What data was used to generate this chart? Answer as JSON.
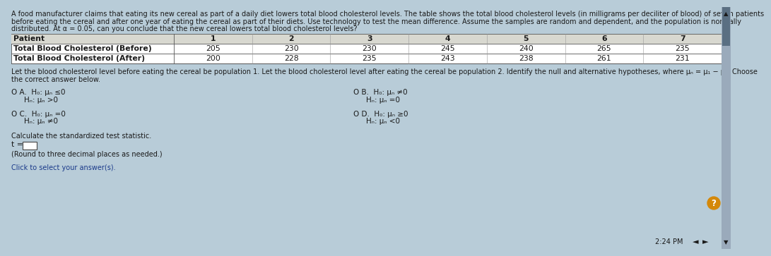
{
  "bg_color": "#b8ccd8",
  "panel_color": "#ccd8e4",
  "title_line1": "A food manufacturer claims that eating its new cereal as part of a daily diet lowers total blood cholesterol levels. The table shows the total blood cholesterol levels (in milligrams per deciliter of blood) of seven patients",
  "title_line2": "before eating the cereal and after one year of eating the cereal as part of their diets. Use technology to test the mean difference. Assume the samples are random and dependent, and the population is normally",
  "title_line3": "distributed. At α = 0.05, can you conclude that the new cereal lowers total blood cholesterol levels?",
  "table_headers": [
    "Patient",
    "1",
    "2",
    "3",
    "4",
    "5",
    "6",
    "7"
  ],
  "row1_label": "Total Blood Cholesterol (Before)",
  "row2_label": "Total Blood Cholesterol (After)",
  "row1_data": [
    "205",
    "230",
    "230",
    "245",
    "240",
    "265",
    "235"
  ],
  "row2_data": [
    "200",
    "228",
    "235",
    "243",
    "238",
    "261",
    "231"
  ],
  "para_line1": "Let the blood cholesterol level before eating the cereal be population 1. Let the blood cholesterol level after eating the cereal be population 2. Identify the null and alternative hypotheses, where μₙ = μ₁ − μ₂. Choose",
  "para_line2": "the correct answer below.",
  "optA_line1": "O A.  H₀: μₙ ≤0",
  "optA_line2": "        H₀: μₙ >0",
  "optB_line1": "O B.  H₀: μₙ ≠0",
  "optB_line2": "        Hₙ: μₙ =0",
  "optC_line1": "O C.  H₀: μₙ =0",
  "optC_line2": "        Hₙ: μₙ ≠0",
  "optD_line1": "O D.  H₀: μₙ ≥0",
  "optD_line2": "        Hₙ: μₙ <0",
  "calc_text": "Calculate the standardized test statistic.",
  "t_label": "t =",
  "round_text": "(Round to three decimal places as needed.)",
  "click_text": "Click to select your answer(s).",
  "time_text": "2:24 PM",
  "text_color": "#1a1a1a",
  "link_color": "#1a3a8a",
  "table_border": "#555555",
  "scrollbar_bg": "#9aaabb",
  "scrollbar_handle": "#5a6f82",
  "question_circle": "#d4880a",
  "white": "#ffffff",
  "header_bg": "#d8d8d0",
  "row_bg": "#e8e8e0"
}
